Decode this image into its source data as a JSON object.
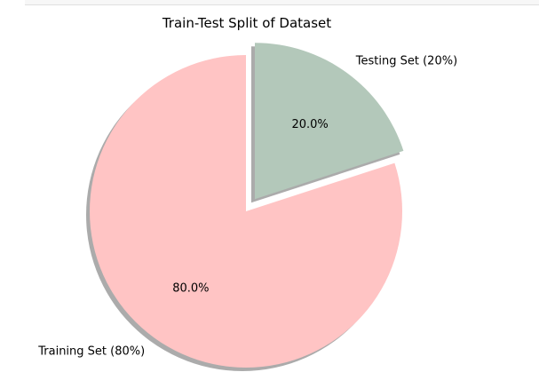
{
  "chart_data": {
    "type": "pie",
    "title": "Train-Test Split of Dataset",
    "categories": [
      "Training Set (80%)",
      "Testing Set (20%)"
    ],
    "values": [
      80,
      20
    ],
    "percent_labels": [
      "80.0%",
      "20.0%"
    ],
    "colors": [
      "#ffc4c4",
      "#b3c8ba"
    ],
    "exploded": [
      false,
      true
    ],
    "shadow": true,
    "start_angle_deg": 90,
    "legend": false,
    "grid": false
  }
}
